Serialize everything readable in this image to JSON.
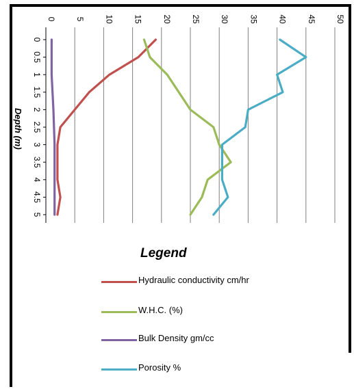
{
  "chart_data": {
    "type": "line",
    "orientation": "depth-profile",
    "ylabel": "Depth (m)",
    "xlim": [
      0,
      50
    ],
    "ylim": [
      0,
      5
    ],
    "x_ticks": [
      "0",
      "5",
      "10",
      "15",
      "20",
      "25",
      "30",
      "35",
      "40",
      "45",
      "50"
    ],
    "y_ticks": [
      "0",
      "0.5",
      "1",
      "1.5",
      "2",
      "2.5",
      "3",
      "3.5",
      "4",
      "4.5",
      "5"
    ],
    "grid": true,
    "legend_title": "Legend",
    "legend_position": "bottom",
    "series": [
      {
        "name": "Hydraulic conductivity cm/hr",
        "color": "#c0504d",
        "points": [
          [
            19,
            0
          ],
          [
            16,
            0.5
          ],
          [
            11,
            1
          ],
          [
            7.5,
            1.5
          ],
          [
            5,
            2
          ],
          [
            2.5,
            2.5
          ],
          [
            2,
            3
          ],
          [
            2,
            3.5
          ],
          [
            2,
            4
          ],
          [
            2.5,
            4.5
          ],
          [
            2,
            5
          ]
        ]
      },
      {
        "name": "W.H.C. (%)",
        "color": "#9bbb59",
        "points": [
          [
            17,
            0
          ],
          [
            18,
            0.5
          ],
          [
            21,
            1
          ],
          [
            23,
            1.5
          ],
          [
            25,
            2
          ],
          [
            29,
            2.5
          ],
          [
            30,
            3
          ],
          [
            32,
            3.5
          ],
          [
            28,
            4
          ],
          [
            27,
            4.5
          ],
          [
            25,
            5
          ]
        ]
      },
      {
        "name": "Bulk Density  gm/cc",
        "color": "#8064a2",
        "points": [
          [
            1,
            0
          ],
          [
            1,
            1
          ],
          [
            1.3,
            2
          ],
          [
            1.5,
            3
          ],
          [
            1.5,
            4
          ],
          [
            1.5,
            5
          ]
        ]
      },
      {
        "name": "Porosity %",
        "color": "#4bacc6",
        "points": [
          [
            40.5,
            0
          ],
          [
            45,
            0.5
          ],
          [
            40,
            1
          ],
          [
            41,
            1.5
          ],
          [
            35,
            2
          ],
          [
            34.5,
            2.5
          ],
          [
            30.5,
            3
          ],
          [
            30.5,
            3.5
          ],
          [
            30.5,
            4
          ],
          [
            31.5,
            4.5
          ],
          [
            29,
            5
          ]
        ]
      }
    ]
  },
  "legend": {
    "title": "Legend",
    "items": [
      {
        "label": "Hydraulic conductivity cm/hr",
        "color": "#c0504d"
      },
      {
        "label": "W.H.C. (%)",
        "color": "#9bbb59"
      },
      {
        "label": "Bulk Density  gm/cc",
        "color": "#8064a2"
      },
      {
        "label": "Porosity %",
        "color": "#4bacc6"
      }
    ]
  }
}
